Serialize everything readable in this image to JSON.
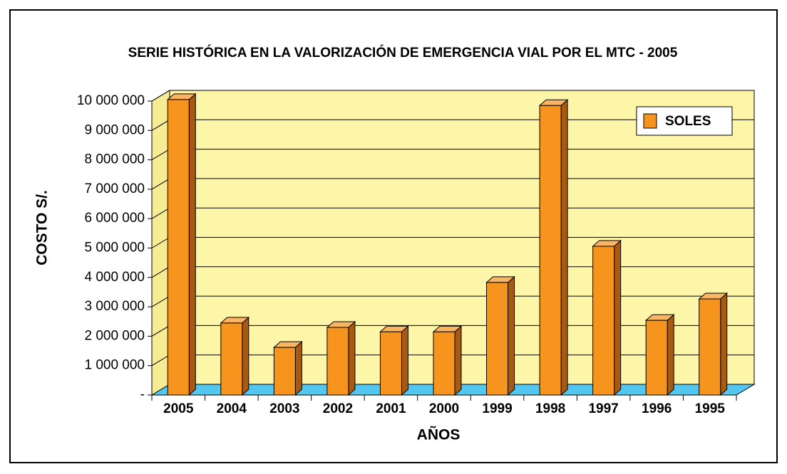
{
  "chart_data": {
    "type": "bar",
    "title": "SERIE HISTÓRICA EN LA VALORIZACIÓN DE EMERGENCIA VIAL POR EL MTC - 2005",
    "y_label": "COSTO S/.",
    "x_label": "AÑOS",
    "categories": [
      "2005",
      "2004",
      "2003",
      "2002",
      "2001",
      "2000",
      "1999",
      "1998",
      "1997",
      "1996",
      "1995"
    ],
    "series": [
      {
        "name": "SOLES",
        "color": "#f7941d",
        "values": [
          10050000,
          2450000,
          1620000,
          2300000,
          2150000,
          2150000,
          3830000,
          9850000,
          5060000,
          2540000,
          3270000
        ]
      }
    ],
    "ylim": [
      0,
      10000000
    ],
    "yticks": [
      {
        "value": 0,
        "label": "-"
      },
      {
        "value": 1000000,
        "label": "1 000 000"
      },
      {
        "value": 2000000,
        "label": "2 000 000"
      },
      {
        "value": 3000000,
        "label": "3 000 000"
      },
      {
        "value": 4000000,
        "label": "4 000 000"
      },
      {
        "value": 5000000,
        "label": "5 000 000"
      },
      {
        "value": 6000000,
        "label": "6 000 000"
      },
      {
        "value": 7000000,
        "label": "7 000 000"
      },
      {
        "value": 8000000,
        "label": "8 000 000"
      },
      {
        "value": 9000000,
        "label": "9 000 000"
      },
      {
        "value": 10000000,
        "label": "10 000 000"
      }
    ],
    "grid": true,
    "legend": "top-right"
  }
}
